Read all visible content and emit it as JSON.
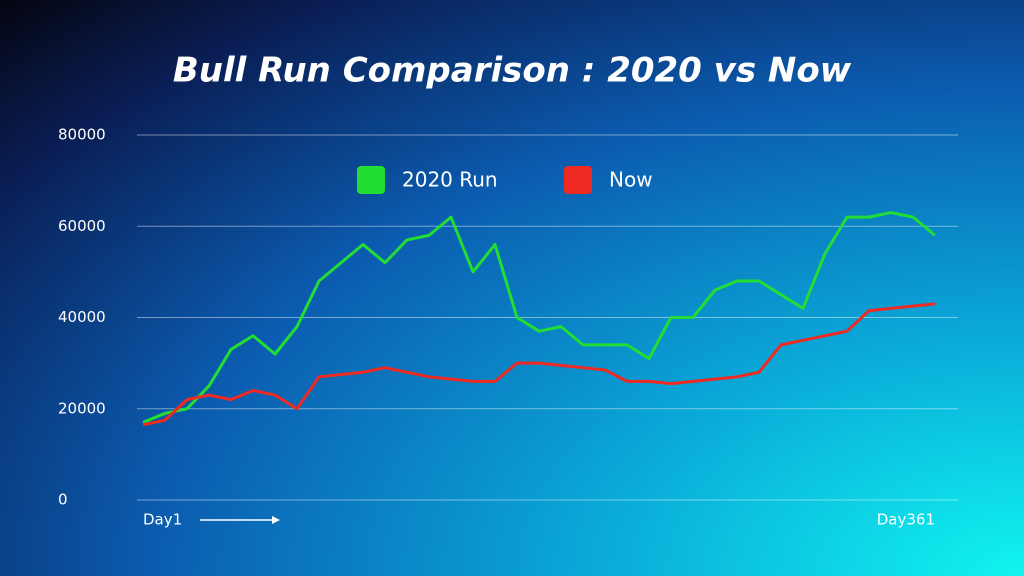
{
  "chart_data": {
    "type": "line",
    "title": "Bull Run Comparison : 2020 vs Now",
    "x": [
      1,
      11,
      21,
      31,
      41,
      51,
      61,
      71,
      81,
      91,
      101,
      111,
      121,
      131,
      141,
      151,
      161,
      171,
      181,
      191,
      201,
      211,
      221,
      231,
      241,
      251,
      261,
      271,
      281,
      291,
      301,
      311,
      321,
      331,
      341,
      351,
      361
    ],
    "series": [
      {
        "name": "2020 Run",
        "color": "#22dd33",
        "values": [
          17000,
          19000,
          20000,
          25000,
          33000,
          36000,
          32000,
          38000,
          48000,
          52000,
          56000,
          52000,
          57000,
          58000,
          62000,
          50000,
          56000,
          40000,
          37000,
          38000,
          34000,
          34000,
          34000,
          31000,
          40000,
          40000,
          46000,
          48000,
          48000,
          45000,
          42000,
          54000,
          62000,
          62000,
          63000,
          62000,
          58000
        ]
      },
      {
        "name": "Now",
        "color": "#ee2a22",
        "values": [
          16500,
          17500,
          22000,
          23000,
          22000,
          24000,
          23000,
          20000,
          27000,
          27500,
          28000,
          29000,
          28000,
          27000,
          26500,
          26000,
          26000,
          30000,
          30000,
          29500,
          29000,
          28500,
          26000,
          26000,
          25500,
          26000,
          26500,
          27000,
          28000,
          34000,
          35000,
          36000,
          37000,
          41500,
          42000,
          42500,
          43000
        ]
      }
    ],
    "xlim": [
      1,
      361
    ],
    "xticks": [
      {
        "value": 1,
        "label": "Day1"
      },
      {
        "value": 361,
        "label": "Day361"
      }
    ],
    "ylim": [
      0,
      80000
    ],
    "yticks": [
      0,
      20000,
      40000,
      60000,
      80000
    ],
    "grid": true
  }
}
